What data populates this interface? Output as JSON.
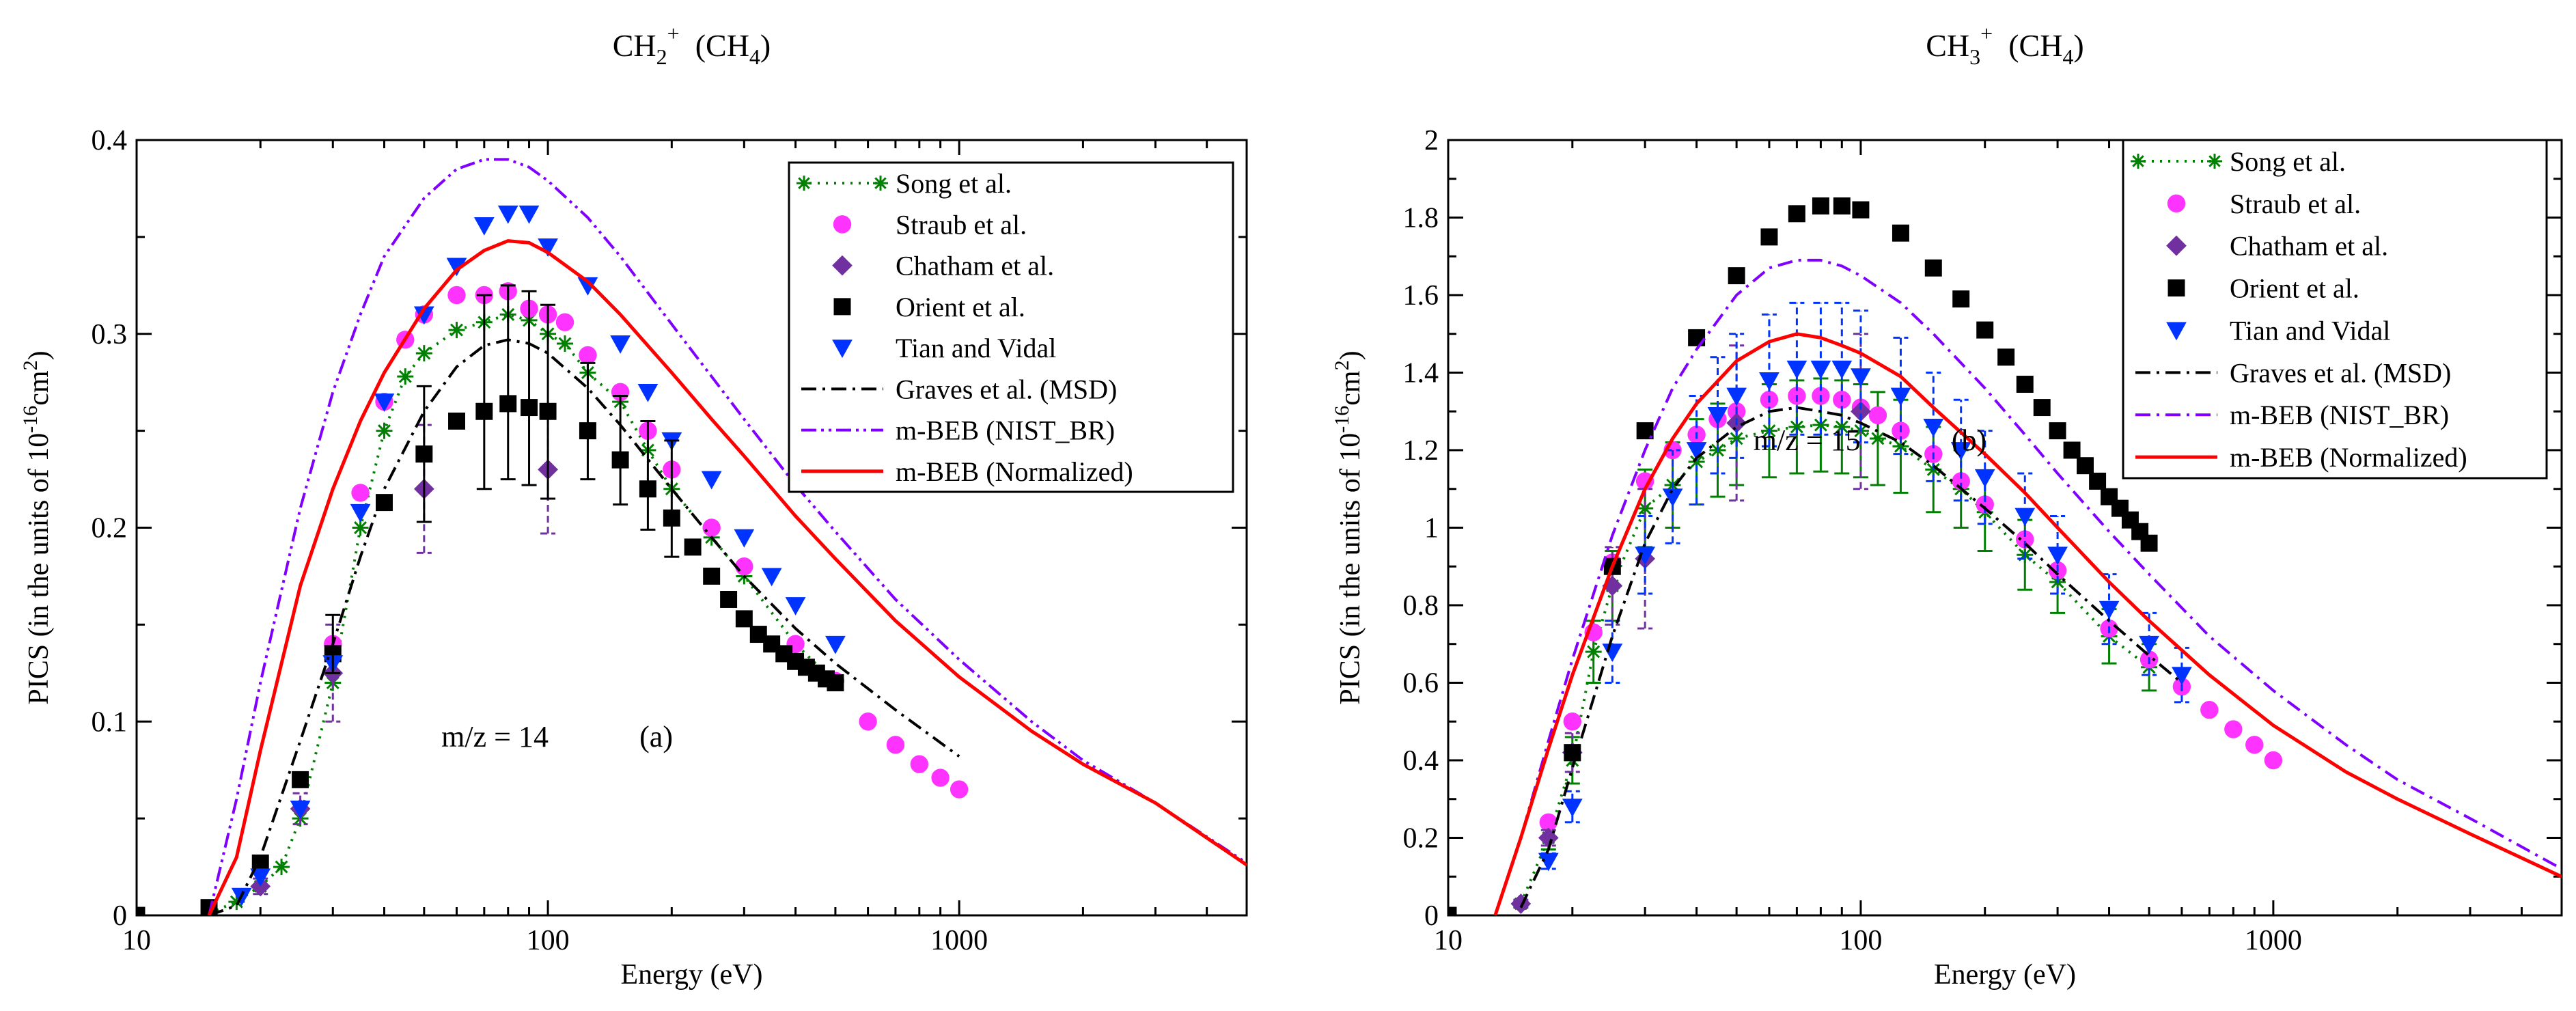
{
  "chart_data": [
    {
      "type": "scatter",
      "panel": "a",
      "title": {
        "base": "CH",
        "sub": "2",
        "sup": "+",
        "rest": "(CH",
        "rest_sub": "4",
        "rest_end": ")"
      },
      "xlabel": "Energy (eV)",
      "ylabel": {
        "base": "PICS (in the units of 10",
        "sup": "-16",
        "mid": "cm",
        "sup2": "2",
        "end": ")"
      },
      "xscale": "log",
      "xlim": [
        10,
        5000
      ],
      "ylim": [
        0,
        0.4
      ],
      "xticks": [
        10,
        100,
        1000
      ],
      "xtick_labels": [
        "10",
        "100",
        "1000"
      ],
      "yticks": [
        0,
        0.1,
        0.2,
        0.3,
        0.4
      ],
      "ytick_labels": [
        "0",
        "0.1",
        "0.2",
        "0.3",
        "0.4"
      ],
      "annotation": "m/z = 14",
      "panel_label": "(a)",
      "legend_position": "top-right",
      "series": [
        {
          "name": "Song et al.",
          "style": "dotted-star",
          "color": "#008000",
          "x": [
            15,
            17.5,
            20,
            22.5,
            25,
            30,
            35,
            40,
            45,
            50,
            60,
            70,
            80,
            90,
            100,
            110,
            125,
            150,
            175,
            200,
            250,
            300,
            400,
            500
          ],
          "y": [
            0.001,
            0.007,
            0.015,
            0.025,
            0.05,
            0.12,
            0.2,
            0.25,
            0.278,
            0.29,
            0.302,
            0.306,
            0.31,
            0.307,
            0.3,
            0.295,
            0.28,
            0.265,
            0.24,
            0.22,
            0.195,
            0.175,
            0.14,
            0.12
          ]
        },
        {
          "name": "Straub et al.",
          "style": "circle",
          "color": "#ff33ff",
          "x": [
            30,
            35,
            40,
            45,
            50,
            60,
            70,
            80,
            90,
            100,
            110,
            125,
            150,
            175,
            200,
            250,
            300,
            400,
            500,
            600,
            700,
            800,
            900,
            1000
          ],
          "y": [
            0.14,
            0.218,
            0.265,
            0.297,
            0.31,
            0.32,
            0.32,
            0.322,
            0.313,
            0.31,
            0.306,
            0.289,
            0.27,
            0.25,
            0.23,
            0.2,
            0.18,
            0.14,
            0.121,
            0.1,
            0.088,
            0.078,
            0.071,
            0.065
          ]
        },
        {
          "name": "Chatham et al.",
          "style": "diamond",
          "color": "#7030a0",
          "x": [
            20,
            25,
            30,
            50,
            100
          ],
          "y": [
            0.015,
            0.055,
            0.125,
            0.22,
            0.23
          ],
          "err": [
            0.004,
            0.008,
            0.025,
            0.033,
            0.033
          ]
        },
        {
          "name": "Orient et al.",
          "style": "square",
          "color": "#000000",
          "x": [
            10,
            15,
            20,
            25,
            30,
            40,
            50,
            60,
            70,
            80,
            90,
            100,
            125,
            150,
            175,
            200,
            225,
            250,
            275,
            300,
            325,
            350,
            375,
            400,
            425,
            450,
            475,
            500
          ],
          "y": [
            0,
            0.004,
            0.027,
            0.07,
            0.135,
            0.213,
            0.238,
            0.255,
            0.26,
            0.264,
            0.262,
            0.26,
            0.25,
            0.235,
            0.22,
            0.205,
            0.19,
            0.175,
            0.163,
            0.153,
            0.145,
            0.14,
            0.135,
            0.131,
            0.128,
            0.125,
            0.122,
            0.12
          ]
        },
        {
          "name": "Tian and Vidal",
          "style": "triangle-down",
          "color": "#0033ff",
          "x": [
            18,
            20,
            25,
            30,
            35,
            40,
            50,
            60,
            70,
            80,
            90,
            100,
            125,
            150,
            175,
            200,
            250,
            300,
            350,
            400,
            500
          ],
          "y": [
            0.01,
            0.02,
            0.055,
            0.13,
            0.208,
            0.265,
            0.31,
            0.335,
            0.356,
            0.362,
            0.362,
            0.345,
            0.325,
            0.295,
            0.27,
            0.245,
            0.225,
            0.195,
            0.175,
            0.16,
            0.14
          ]
        },
        {
          "name": "Graves et al. (MSD)",
          "style": "dashdot",
          "color": "#000000",
          "x": [
            15,
            17.5,
            20,
            25,
            30,
            35,
            40,
            50,
            60,
            70,
            80,
            90,
            100,
            125,
            150,
            200,
            250,
            300,
            400,
            500,
            700,
            1000
          ],
          "y": [
            0.0,
            0.005,
            0.03,
            0.09,
            0.14,
            0.185,
            0.22,
            0.26,
            0.283,
            0.294,
            0.297,
            0.295,
            0.29,
            0.272,
            0.253,
            0.22,
            0.195,
            0.175,
            0.148,
            0.13,
            0.106,
            0.082
          ]
        },
        {
          "name": "Graves et al. (MSD) error bars",
          "style": "errorbars",
          "color": "#000000",
          "x": [
            30,
            50,
            70,
            80,
            90,
            100,
            125,
            150,
            175,
            200
          ],
          "y": [
            0.14,
            0.238,
            0.27,
            0.275,
            0.272,
            0.265,
            0.255,
            0.24,
            0.227,
            0.215
          ],
          "err": [
            0.015,
            0.035,
            0.05,
            0.05,
            0.05,
            0.05,
            0.03,
            0.028,
            0.028,
            0.03
          ]
        },
        {
          "name": "m-BEB (NIST_BR)",
          "style": "dashdotdot",
          "color": "#8000ff",
          "x": [
            15,
            17.5,
            20,
            25,
            30,
            35,
            40,
            50,
            60,
            70,
            80,
            90,
            100,
            125,
            150,
            200,
            250,
            300,
            400,
            500,
            700,
            1000,
            1500,
            2000,
            3000,
            5000
          ],
          "y": [
            0.0,
            0.06,
            0.12,
            0.21,
            0.27,
            0.31,
            0.34,
            0.37,
            0.385,
            0.39,
            0.39,
            0.386,
            0.379,
            0.36,
            0.34,
            0.305,
            0.278,
            0.256,
            0.222,
            0.198,
            0.163,
            0.132,
            0.1,
            0.08,
            0.058,
            0.027
          ]
        },
        {
          "name": "m-BEB (Normalized)",
          "style": "solid",
          "color": "#ff0000",
          "x": [
            15,
            17.5,
            20,
            25,
            30,
            35,
            40,
            50,
            60,
            70,
            80,
            90,
            100,
            125,
            150,
            200,
            250,
            300,
            400,
            500,
            700,
            1000,
            1500,
            2000,
            3000,
            5000
          ],
          "y": [
            0.0,
            0.03,
            0.085,
            0.17,
            0.22,
            0.255,
            0.28,
            0.313,
            0.333,
            0.343,
            0.348,
            0.347,
            0.342,
            0.327,
            0.31,
            0.28,
            0.256,
            0.237,
            0.206,
            0.184,
            0.152,
            0.123,
            0.095,
            0.078,
            0.058,
            0.026
          ]
        }
      ]
    },
    {
      "type": "scatter",
      "panel": "b",
      "title": {
        "base": "CH",
        "sub": "3",
        "sup": "+",
        "rest": "(CH",
        "rest_sub": "4",
        "rest_end": ")"
      },
      "xlabel": "Energy (eV)",
      "ylabel": {
        "base": "PICS (in the units of 10",
        "sup": "-16",
        "mid": "cm",
        "sup2": "2",
        "end": ")"
      },
      "xscale": "log",
      "xlim": [
        10,
        5000
      ],
      "ylim": [
        0,
        2
      ],
      "xticks": [
        10,
        100,
        1000
      ],
      "xtick_labels": [
        "10",
        "100",
        "1000"
      ],
      "yticks": [
        0,
        0.2,
        0.4,
        0.6,
        0.8,
        1,
        1.2,
        1.4,
        1.6,
        1.8,
        2
      ],
      "ytick_labels": [
        "0",
        "0.2",
        "0.4",
        "0.6",
        "0.8",
        "1",
        "1.2",
        "1.4",
        "1.6",
        "1.8",
        "2"
      ],
      "annotation": "m/z = 15",
      "panel_label": "(b)",
      "legend_position": "top-right",
      "series": [
        {
          "name": "Song et al.",
          "style": "dotted-star",
          "color": "#008000",
          "x": [
            15,
            17.5,
            20,
            22.5,
            25,
            30,
            35,
            40,
            45,
            50,
            60,
            70,
            80,
            90,
            100,
            110,
            125,
            150,
            175,
            200,
            250,
            300,
            400,
            500
          ],
          "y": [
            0.03,
            0.2,
            0.4,
            0.68,
            0.85,
            1.05,
            1.11,
            1.17,
            1.2,
            1.23,
            1.25,
            1.26,
            1.265,
            1.26,
            1.25,
            1.23,
            1.21,
            1.15,
            1.1,
            1.04,
            0.93,
            0.86,
            0.72,
            0.64
          ],
          "err": [
            0.005,
            0.03,
            0.06,
            0.08,
            0.09,
            0.1,
            0.11,
            0.11,
            0.12,
            0.12,
            0.12,
            0.12,
            0.12,
            0.12,
            0.12,
            0.12,
            0.12,
            0.11,
            0.1,
            0.1,
            0.09,
            0.08,
            0.07,
            0.06
          ]
        },
        {
          "name": "Straub et al.",
          "style": "circle",
          "color": "#ff33ff",
          "x": [
            17.5,
            20,
            22.5,
            25,
            30,
            35,
            40,
            45,
            50,
            60,
            70,
            80,
            90,
            100,
            110,
            125,
            150,
            175,
            200,
            250,
            300,
            400,
            500,
            600,
            700,
            800,
            900,
            1000
          ],
          "y": [
            0.24,
            0.5,
            0.73,
            0.91,
            1.12,
            1.2,
            1.24,
            1.28,
            1.3,
            1.33,
            1.34,
            1.34,
            1.33,
            1.31,
            1.29,
            1.25,
            1.19,
            1.12,
            1.06,
            0.97,
            0.89,
            0.74,
            0.66,
            0.59,
            0.53,
            0.48,
            0.44,
            0.4
          ]
        },
        {
          "name": "Chatham et al.",
          "style": "diamond",
          "color": "#7030a0",
          "x": [
            15,
            17.5,
            20,
            25,
            30,
            50,
            100
          ],
          "y": [
            0.03,
            0.2,
            0.42,
            0.85,
            0.92,
            1.27,
            1.3
          ],
          "err": [
            0.01,
            0.02,
            0.05,
            0.1,
            0.18,
            0.2,
            0.2
          ]
        },
        {
          "name": "Orient et al.",
          "style": "square",
          "color": "#000000",
          "x": [
            10,
            20,
            25,
            30,
            40,
            50,
            60,
            70,
            80,
            90,
            100,
            125,
            150,
            175,
            200,
            225,
            250,
            275,
            300,
            325,
            350,
            375,
            400,
            425,
            450,
            475,
            500
          ],
          "y": [
            0,
            0.42,
            0.9,
            1.25,
            1.49,
            1.65,
            1.75,
            1.81,
            1.83,
            1.83,
            1.82,
            1.76,
            1.67,
            1.59,
            1.51,
            1.44,
            1.37,
            1.31,
            1.25,
            1.2,
            1.16,
            1.12,
            1.08,
            1.05,
            1.02,
            0.99,
            0.96
          ]
        },
        {
          "name": "Tian and Vidal",
          "style": "triangle-down",
          "color": "#0033ff",
          "x": [
            17.5,
            20,
            25,
            30,
            35,
            40,
            45,
            50,
            60,
            70,
            80,
            90,
            100,
            125,
            150,
            175,
            200,
            250,
            300,
            400,
            500,
            600
          ],
          "y": [
            0.14,
            0.28,
            0.68,
            0.93,
            1.08,
            1.2,
            1.29,
            1.34,
            1.38,
            1.41,
            1.41,
            1.41,
            1.39,
            1.34,
            1.26,
            1.2,
            1.13,
            1.03,
            0.93,
            0.79,
            0.7,
            0.62
          ],
          "err": [
            0.02,
            0.04,
            0.08,
            0.1,
            0.12,
            0.14,
            0.15,
            0.16,
            0.17,
            0.17,
            0.17,
            0.17,
            0.17,
            0.15,
            0.14,
            0.13,
            0.12,
            0.11,
            0.1,
            0.09,
            0.08,
            0.07
          ]
        },
        {
          "name": "Graves et al. (MSD)",
          "style": "dashdot",
          "color": "#000000",
          "x": [
            15,
            17.5,
            20,
            25,
            30,
            35,
            40,
            50,
            60,
            70,
            80,
            90,
            100,
            125,
            150,
            200,
            250,
            300,
            400,
            500,
            600
          ],
          "y": [
            0.02,
            0.17,
            0.38,
            0.72,
            0.96,
            1.1,
            1.18,
            1.26,
            1.3,
            1.31,
            1.3,
            1.29,
            1.27,
            1.22,
            1.16,
            1.05,
            0.96,
            0.88,
            0.76,
            0.67,
            0.6
          ]
        },
        {
          "name": "m-BEB (NIST_BR)",
          "style": "dashdot",
          "color": "#8000ff",
          "x": [
            13,
            15,
            17.5,
            20,
            25,
            30,
            35,
            40,
            50,
            60,
            70,
            80,
            90,
            100,
            125,
            150,
            200,
            250,
            300,
            400,
            500,
            700,
            1000,
            1500,
            2000,
            3000,
            5000
          ],
          "y": [
            0.0,
            0.2,
            0.45,
            0.66,
            0.98,
            1.2,
            1.36,
            1.46,
            1.6,
            1.67,
            1.69,
            1.69,
            1.675,
            1.65,
            1.58,
            1.5,
            1.36,
            1.24,
            1.14,
            0.99,
            0.88,
            0.72,
            0.58,
            0.44,
            0.35,
            0.25,
            0.12
          ]
        },
        {
          "name": "m-BEB (Normalized)",
          "style": "solid",
          "color": "#ff0000",
          "x": [
            13,
            15,
            17.5,
            20,
            25,
            30,
            35,
            40,
            50,
            60,
            70,
            80,
            90,
            100,
            125,
            150,
            200,
            250,
            300,
            400,
            500,
            700,
            1000,
            1500,
            2000,
            3000,
            5000
          ],
          "y": [
            0.0,
            0.2,
            0.43,
            0.62,
            0.9,
            1.1,
            1.23,
            1.32,
            1.43,
            1.48,
            1.5,
            1.49,
            1.47,
            1.45,
            1.39,
            1.31,
            1.19,
            1.09,
            1.0,
            0.86,
            0.76,
            0.62,
            0.49,
            0.37,
            0.3,
            0.21,
            0.1
          ]
        }
      ]
    }
  ]
}
